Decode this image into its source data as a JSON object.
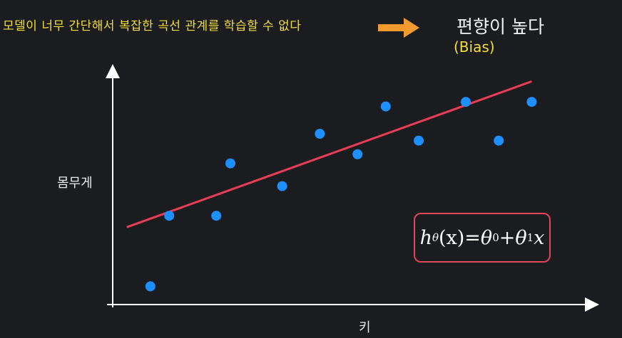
{
  "header": {
    "caption": "모델이 너무 간단해서 복잡한 곡선 관계를 학습할 수 없다",
    "result": "편향이 높다",
    "result_sub": "(Bias)",
    "arrow_color": "#f39a2e",
    "caption_color": "#f3de3a"
  },
  "formula": {
    "h": "h",
    "theta": "θ",
    "x": "(x)",
    "eq": " = ",
    "t0": "θ",
    "s0": "0",
    "plus": " + ",
    "t1": "θ",
    "s1": "1",
    "x2": "x",
    "border_color": "#e0455a"
  },
  "chart_data": {
    "type": "scatter",
    "xlabel": "키",
    "ylabel": "몸무게",
    "xlim": [
      0,
      10
    ],
    "ylim": [
      0,
      10
    ],
    "grid": false,
    "point_color": "#1e8fff",
    "line_color": "#e83d55",
    "points": [
      {
        "x": 0.8,
        "y": 0.8
      },
      {
        "x": 1.2,
        "y": 3.9
      },
      {
        "x": 2.2,
        "y": 3.9
      },
      {
        "x": 2.5,
        "y": 6.2
      },
      {
        "x": 3.6,
        "y": 5.2
      },
      {
        "x": 4.4,
        "y": 7.5
      },
      {
        "x": 5.2,
        "y": 6.6
      },
      {
        "x": 5.8,
        "y": 8.7
      },
      {
        "x": 6.5,
        "y": 7.2
      },
      {
        "x": 7.5,
        "y": 8.9
      },
      {
        "x": 8.2,
        "y": 7.2
      },
      {
        "x": 8.9,
        "y": 8.9
      }
    ],
    "fit_line": {
      "x": [
        0.3,
        8.9
      ],
      "y": [
        3.4,
        9.8
      ]
    }
  }
}
